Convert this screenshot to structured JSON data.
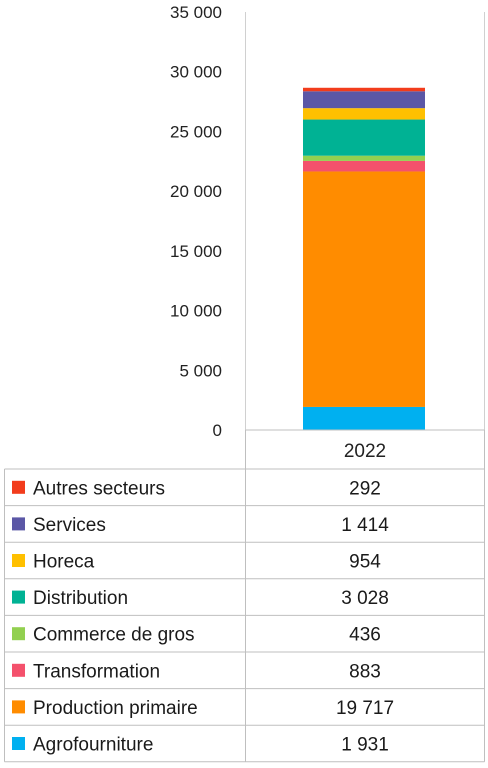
{
  "chart_data": {
    "type": "bar",
    "stacked": true,
    "title": "",
    "xlabel": "",
    "ylabel": "",
    "categories": [
      "2022"
    ],
    "ylim": [
      0,
      35000
    ],
    "yticks": [
      0,
      5000,
      10000,
      15000,
      20000,
      25000,
      30000,
      35000
    ],
    "ytick_labels": [
      "0",
      "5 000",
      "10 000",
      "15 000",
      "20 000",
      "25 000",
      "30 000",
      "35 000"
    ],
    "grid": false,
    "legend": "data-table-below",
    "series": [
      {
        "name": "Agrofourniture",
        "values": [
          1931
        ],
        "label": "1 931",
        "color": "#00B0F0"
      },
      {
        "name": "Production primaire",
        "values": [
          19717
        ],
        "label": "19 717",
        "color": "#FF8C00"
      },
      {
        "name": "Transformation",
        "values": [
          883
        ],
        "label": "883",
        "color": "#F4516C"
      },
      {
        "name": "Commerce de gros",
        "values": [
          436
        ],
        "label": "436",
        "color": "#92D050"
      },
      {
        "name": "Distribution",
        "values": [
          3028
        ],
        "label": "3 028",
        "color": "#00B294"
      },
      {
        "name": "Horeca",
        "values": [
          954
        ],
        "label": "954",
        "color": "#FFC000"
      },
      {
        "name": "Services",
        "values": [
          1414
        ],
        "label": "1 414",
        "color": "#5B57A6"
      },
      {
        "name": "Autres secteurs",
        "values": [
          292
        ],
        "label": "292",
        "color": "#F23C1C"
      }
    ]
  }
}
